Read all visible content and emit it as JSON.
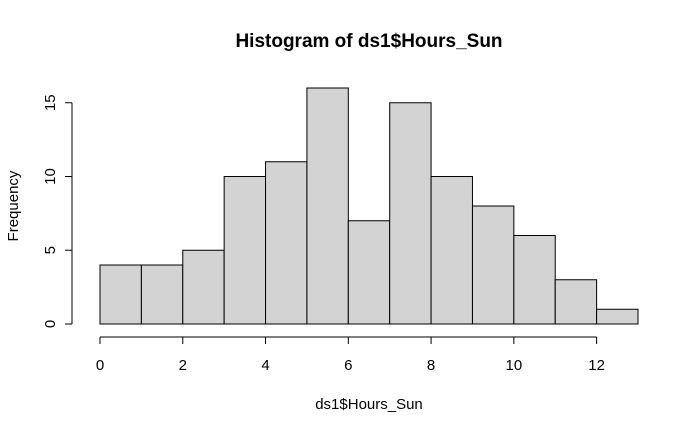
{
  "chart_data": {
    "type": "bar",
    "title": "Histogram of ds1$Hours_Sun",
    "xlabel": "ds1$Hours_Sun",
    "ylabel": "Frequency",
    "bins": [
      {
        "start": 0,
        "end": 1,
        "count": 4
      },
      {
        "start": 1,
        "end": 2,
        "count": 4
      },
      {
        "start": 2,
        "end": 3,
        "count": 5
      },
      {
        "start": 3,
        "end": 4,
        "count": 10
      },
      {
        "start": 4,
        "end": 5,
        "count": 11
      },
      {
        "start": 5,
        "end": 6,
        "count": 16
      },
      {
        "start": 6,
        "end": 7,
        "count": 7
      },
      {
        "start": 7,
        "end": 8,
        "count": 15
      },
      {
        "start": 8,
        "end": 9,
        "count": 10
      },
      {
        "start": 9,
        "end": 10,
        "count": 8
      },
      {
        "start": 10,
        "end": 11,
        "count": 6
      },
      {
        "start": 11,
        "end": 12,
        "count": 3
      },
      {
        "start": 12,
        "end": 13,
        "count": 1
      }
    ],
    "xlim": [
      0,
      13
    ],
    "ylim": [
      0,
      16
    ],
    "xticks": [
      0,
      2,
      4,
      6,
      8,
      10,
      12
    ],
    "yticks": [
      0,
      5,
      10,
      15
    ],
    "grid": false,
    "bar_color": "#d3d3d3",
    "edge_color": "#000000"
  }
}
